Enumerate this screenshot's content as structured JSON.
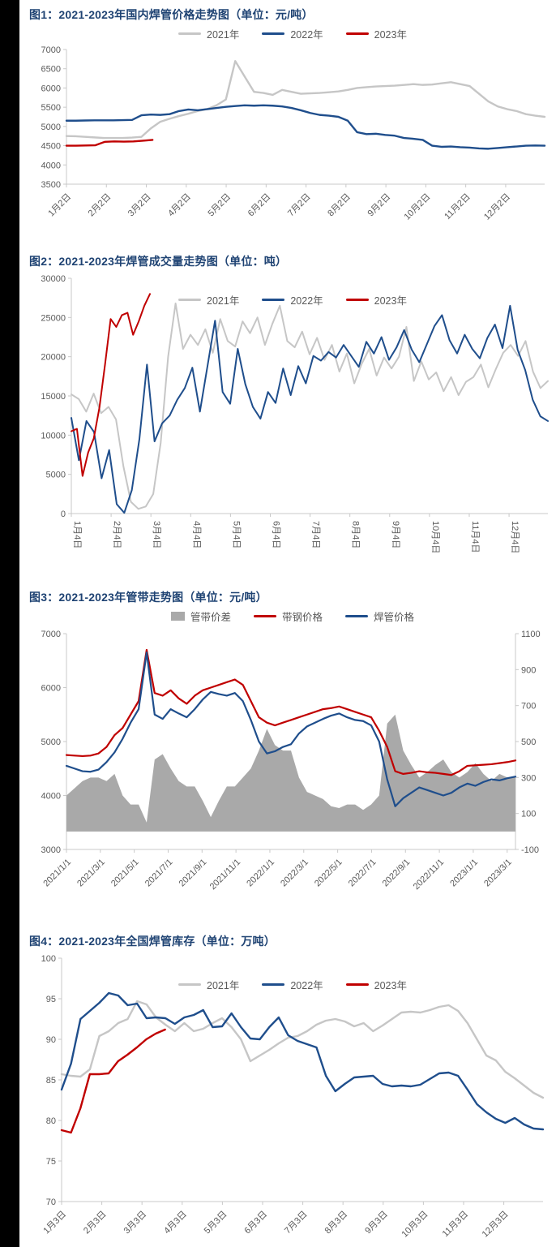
{
  "page": {
    "background": "#ffffff",
    "left_strip_color": "#000000"
  },
  "colors": {
    "y2021": "#C6C6C6",
    "y2022": "#1F4E8C",
    "y2023": "#C00000",
    "area": "#A9A9A9",
    "axis_line": "#C9C9C9",
    "axis_text": "#595959",
    "title_text": "#1F4373"
  },
  "charts": [
    {
      "title": "图1：2021-2023年国内焊管价格走势图（单位：元/吨）",
      "chart_data": {
        "type": "line",
        "ylabel": "元/吨",
        "ylim": [
          3500,
          7000
        ],
        "y_ticks": [
          "3500",
          "4000",
          "4500",
          "5000",
          "5500",
          "6000",
          "6500",
          "7000"
        ],
        "x_ticks": [
          "1月2日",
          "2月2日",
          "3月2日",
          "4月2日",
          "5月2日",
          "6月2日",
          "7月2日",
          "8月2日",
          "9月2日",
          "10月2日",
          "11月2日",
          "12月2日"
        ],
        "legend_position": "top",
        "series": [
          {
            "name": "2021年",
            "color_key": "y2021",
            "marker": "line",
            "span": [
              0,
              1
            ],
            "values": [
              4750,
              4745,
              4730,
              4715,
              4700,
              4700,
              4700,
              4710,
              4730,
              4950,
              5120,
              5200,
              5270,
              5330,
              5400,
              5450,
              5550,
              5700,
              6700,
              6300,
              5900,
              5870,
              5820,
              5950,
              5900,
              5850,
              5860,
              5870,
              5890,
              5910,
              5950,
              6000,
              6020,
              6040,
              6050,
              6060,
              6080,
              6100,
              6080,
              6090,
              6120,
              6150,
              6100,
              6050,
              5850,
              5650,
              5520,
              5450,
              5400,
              5320,
              5280,
              5250
            ]
          },
          {
            "name": "2022年",
            "color_key": "y2022",
            "marker": "line",
            "span": [
              0,
              1
            ],
            "values": [
              5150,
              5150,
              5155,
              5160,
              5160,
              5160,
              5165,
              5170,
              5290,
              5310,
              5300,
              5320,
              5400,
              5440,
              5420,
              5450,
              5480,
              5510,
              5530,
              5550,
              5540,
              5550,
              5540,
              5520,
              5480,
              5420,
              5350,
              5300,
              5280,
              5250,
              5150,
              4850,
              4800,
              4810,
              4780,
              4760,
              4700,
              4680,
              4650,
              4500,
              4470,
              4480,
              4460,
              4450,
              4430,
              4420,
              4440,
              4460,
              4480,
              4500,
              4505,
              4500
            ]
          },
          {
            "name": "2023年",
            "color_key": "y2023",
            "marker": "line",
            "span": [
              0,
              0.18
            ],
            "values": [
              4500,
              4500,
              4505,
              4510,
              4600,
              4610,
              4605,
              4610,
              4630,
              4650
            ]
          }
        ]
      }
    },
    {
      "title": "图2：2021-2023年焊管成交量走势图（单位：吨）",
      "chart_data": {
        "type": "line",
        "ylabel": "吨",
        "ylim": [
          0,
          30000
        ],
        "y_ticks": [
          "0",
          "5000",
          "10000",
          "15000",
          "20000",
          "25000",
          "30000"
        ],
        "x_ticks": [
          "1月4日",
          "2月4日",
          "3月4日",
          "4月4日",
          "5月4日",
          "6月4日",
          "7月4日",
          "8月4日",
          "9月4日",
          "10月4日",
          "11月4日",
          "12月4日"
        ],
        "legend_position": "overlay",
        "series": [
          {
            "name": "2021年",
            "color_key": "y2021",
            "marker": "line",
            "span": [
              0,
              1
            ],
            "values": [
              15200,
              14600,
              13000,
              15300,
              12800,
              13600,
              12000,
              6000,
              1500,
              600,
              900,
              2500,
              9000,
              20000,
              26800,
              21000,
              22800,
              21500,
              23500,
              20500,
              24800,
              22000,
              21300,
              24500,
              23000,
              25000,
              21500,
              24200,
              26500,
              22000,
              21200,
              23200,
              20300,
              22400,
              19600,
              21500,
              18100,
              20400,
              16600,
              19100,
              21000,
              17600,
              19900,
              18500,
              20000,
              23800,
              16900,
              19400,
              17100,
              18000,
              15600,
              17400,
              15100,
              16800,
              17400,
              19000,
              16100,
              18400,
              20500,
              21500,
              20100,
              22000,
              18100,
              16000,
              16900
            ]
          },
          {
            "name": "2022年",
            "color_key": "y2022",
            "marker": "line",
            "span": [
              0,
              1
            ],
            "values": [
              12200,
              6800,
              11800,
              10400,
              4500,
              8100,
              1200,
              100,
              3000,
              9500,
              19000,
              9200,
              11500,
              12500,
              14500,
              16000,
              18600,
              13000,
              18800,
              24600,
              15500,
              14000,
              21000,
              16500,
              13600,
              12100,
              15500,
              14100,
              18500,
              15100,
              18800,
              16600,
              20100,
              19500,
              20600,
              19900,
              21500,
              20100,
              18700,
              21900,
              20400,
              22500,
              19600,
              21200,
              23400,
              20900,
              19300,
              21600,
              23900,
              25300,
              22100,
              20400,
              22800,
              21000,
              19800,
              22400,
              24100,
              21100,
              26500,
              20900,
              18300,
              14500,
              12400,
              11800
            ]
          },
          {
            "name": "2023年",
            "color_key": "y2023",
            "marker": "line",
            "span": [
              0,
              0.165
            ],
            "values": [
              10500,
              10800,
              4800,
              7800,
              9600,
              13500,
              19000,
              24800,
              23800,
              25300,
              25600,
              22800,
              24500,
              26500,
              28000
            ]
          }
        ]
      }
    },
    {
      "title": "图3：2021-2023年管带走势图（单位：元/吨）",
      "chart_data": {
        "type": "combo-area-line",
        "ylabel": "元/吨",
        "ylim": [
          3000,
          7000
        ],
        "y_ticks": [
          "3000",
          "4000",
          "5000",
          "6000",
          "7000"
        ],
        "y2lim": [
          -100,
          1100
        ],
        "y2_ticks": [
          "-100",
          "100",
          "300",
          "500",
          "700",
          "900",
          "1100"
        ],
        "x_ticks": [
          "2021/1/1",
          "2021/3/1",
          "2021/5/1",
          "2021/7/1",
          "2021/9/1",
          "2021/11/1",
          "2022/1/1",
          "2022/3/1",
          "2022/5/1",
          "2022/7/1",
          "2022/9/1",
          "2022/11/1",
          "2023/1/1",
          "2023/3/1"
        ],
        "legend_position": "top",
        "series": [
          {
            "name": "管带价差",
            "color_key": "area",
            "marker": "area",
            "type": "area",
            "axis": "y2",
            "span": [
              0,
              1
            ],
            "values": [
              200,
              240,
              280,
              300,
              300,
              280,
              320,
              200,
              150,
              150,
              50,
              400,
              430,
              350,
              280,
              250,
              250,
              170,
              80,
              170,
              250,
              250,
              300,
              350,
              450,
              570,
              480,
              450,
              450,
              300,
              220,
              200,
              180,
              140,
              130,
              150,
              150,
              120,
              150,
              200,
              600,
              650,
              450,
              370,
              300,
              330,
              370,
              400,
              330,
              300,
              330,
              380,
              320,
              280,
              320,
              300,
              300
            ]
          },
          {
            "name": "带钢价格",
            "color_key": "y2023",
            "marker": "line",
            "span": [
              0,
              1
            ],
            "values": [
              4750,
              4740,
              4730,
              4740,
              4780,
              4900,
              5120,
              5250,
              5500,
              5750,
              6700,
              5900,
              5850,
              5950,
              5800,
              5700,
              5850,
              5950,
              6000,
              6050,
              6100,
              6150,
              6050,
              5750,
              5450,
              5350,
              5300,
              5350,
              5400,
              5450,
              5500,
              5550,
              5600,
              5620,
              5650,
              5600,
              5550,
              5500,
              5450,
              5200,
              4900,
              4450,
              4400,
              4420,
              4450,
              4430,
              4420,
              4400,
              4380,
              4450,
              4550,
              4560,
              4570,
              4580,
              4600,
              4620,
              4650
            ]
          },
          {
            "name": "焊管价格",
            "color_key": "y2022",
            "marker": "line",
            "span": [
              0,
              1
            ],
            "values": [
              4550,
              4500,
              4450,
              4440,
              4480,
              4620,
              4800,
              5050,
              5350,
              5600,
              6650,
              5500,
              5420,
              5600,
              5520,
              5450,
              5600,
              5780,
              5920,
              5880,
              5850,
              5900,
              5750,
              5400,
              5000,
              4780,
              4820,
              4900,
              4950,
              5150,
              5280,
              5350,
              5420,
              5480,
              5520,
              5450,
              5400,
              5380,
              5300,
              5000,
              4300,
              3800,
              3950,
              4050,
              4150,
              4100,
              4050,
              4000,
              4050,
              4150,
              4220,
              4180,
              4250,
              4300,
              4280,
              4320,
              4350
            ]
          }
        ]
      }
    },
    {
      "title": "图4：2021-2023年全国焊管库存（单位：万吨）",
      "chart_data": {
        "type": "line",
        "ylabel": "万吨",
        "ylim": [
          70,
          100
        ],
        "y_ticks": [
          "70",
          "75",
          "80",
          "85",
          "90",
          "95",
          "100"
        ],
        "x_ticks": [
          "1月3日",
          "2月3日",
          "3月3日",
          "4月3日",
          "5月3日",
          "6月3日",
          "7月3日",
          "8月3日",
          "9月3日",
          "10月3日",
          "11月3日",
          "12月3日"
        ],
        "legend_position": "overlay",
        "series": [
          {
            "name": "2021年",
            "color_key": "y2021",
            "marker": "line",
            "span": [
              0,
              1
            ],
            "values": [
              85.7,
              85.5,
              85.4,
              86.3,
              90.4,
              91.0,
              92.0,
              92.5,
              94.7,
              94.3,
              92.7,
              91.8,
              91.0,
              92.0,
              91.0,
              91.3,
              92.0,
              92.6,
              91.5,
              90.0,
              87.3,
              88.0,
              88.7,
              89.5,
              90.2,
              90.4,
              91.0,
              91.8,
              92.3,
              92.5,
              92.2,
              91.6,
              92.0,
              91.0,
              91.7,
              92.5,
              93.3,
              93.4,
              93.3,
              93.6,
              94.0,
              94.2,
              93.5,
              92.0,
              90.0,
              88.0,
              87.4,
              86.0,
              85.2,
              84.3,
              83.4,
              82.8
            ]
          },
          {
            "name": "2022年",
            "color_key": "y2022",
            "marker": "line",
            "span": [
              0,
              1
            ],
            "values": [
              83.8,
              87.0,
              92.5,
              93.5,
              94.5,
              95.7,
              95.4,
              94.2,
              94.4,
              92.6,
              92.7,
              92.6,
              91.9,
              92.7,
              93.0,
              93.6,
              91.5,
              91.6,
              93.2,
              91.5,
              90.1,
              90.0,
              91.5,
              92.7,
              90.5,
              89.8,
              89.4,
              89.0,
              85.5,
              83.6,
              84.5,
              85.3,
              85.4,
              85.5,
              84.5,
              84.2,
              84.3,
              84.2,
              84.4,
              85.1,
              85.8,
              85.9,
              85.5,
              83.8,
              82.0,
              81.0,
              80.2,
              79.7,
              80.3,
              79.5,
              79.0,
              78.9
            ]
          },
          {
            "name": "2023年",
            "color_key": "y2023",
            "marker": "line",
            "span": [
              0,
              0.215
            ],
            "values": [
              78.8,
              78.5,
              81.5,
              85.7,
              85.7,
              85.8,
              87.3,
              88.1,
              89.0,
              90.0,
              90.7,
              91.2
            ]
          }
        ]
      }
    }
  ]
}
